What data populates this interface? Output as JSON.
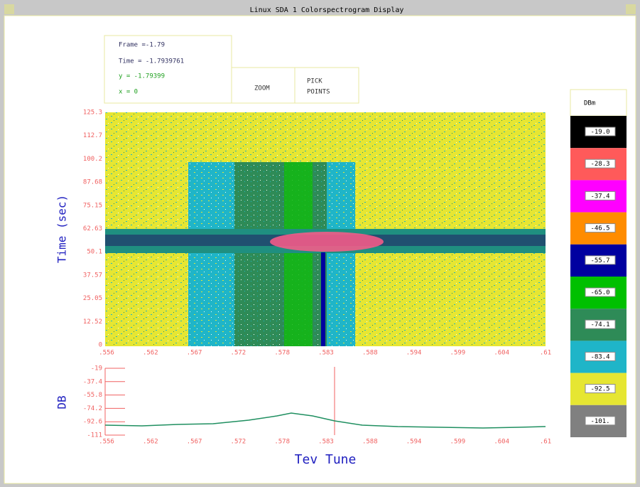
{
  "window": {
    "title": "Linux SDA 1  Colorspectrogram Display"
  },
  "info": {
    "frame": "Frame =-1.79",
    "time": "Time = -1.7939761",
    "y": "y =    -1.79399",
    "x": "x =      0"
  },
  "buttons": {
    "zoom": "ZOOM",
    "pick": [
      "PICK",
      "POINTS"
    ]
  },
  "spectrogram": {
    "y_label": "Time (sec)",
    "y_ticks": [
      "125.3",
      "112.7",
      "100.2",
      "87.68",
      "75.15",
      "62.63",
      "50.1",
      "37.57",
      "25.05",
      "12.52",
      "0"
    ],
    "x_ticks": [
      ".556",
      ".562",
      ".567",
      ".572",
      ".578",
      ".583",
      ".588",
      ".594",
      ".599",
      ".604",
      ".61"
    ]
  },
  "trace": {
    "y_label": "DB",
    "x_label": "Tev Tune",
    "y_ticks": [
      "-19",
      "-37.4",
      "-55.8",
      "-74.2",
      "-92.6",
      "-111"
    ],
    "x_ticks": [
      ".556",
      ".562",
      ".567",
      ".572",
      ".578",
      ".583",
      ".588",
      ".594",
      ".599",
      ".604",
      ".61"
    ]
  },
  "legend": {
    "title": "DBm",
    "entries": [
      {
        "label": "-19.0",
        "color": "#000000"
      },
      {
        "label": "-28.3",
        "color": "#ff5a5a"
      },
      {
        "label": "-37.4",
        "color": "#ff00ff"
      },
      {
        "label": "-46.5",
        "color": "#ff8c00"
      },
      {
        "label": "-55.7",
        "color": "#0000a0"
      },
      {
        "label": "-65.0",
        "color": "#00c000"
      },
      {
        "label": "-74.1",
        "color": "#2e8b57"
      },
      {
        "label": "-83.4",
        "color": "#1fb5c8"
      },
      {
        "label": "-92.5",
        "color": "#e6e632"
      },
      {
        "label": "-101.",
        "color": "#808080"
      }
    ]
  }
}
